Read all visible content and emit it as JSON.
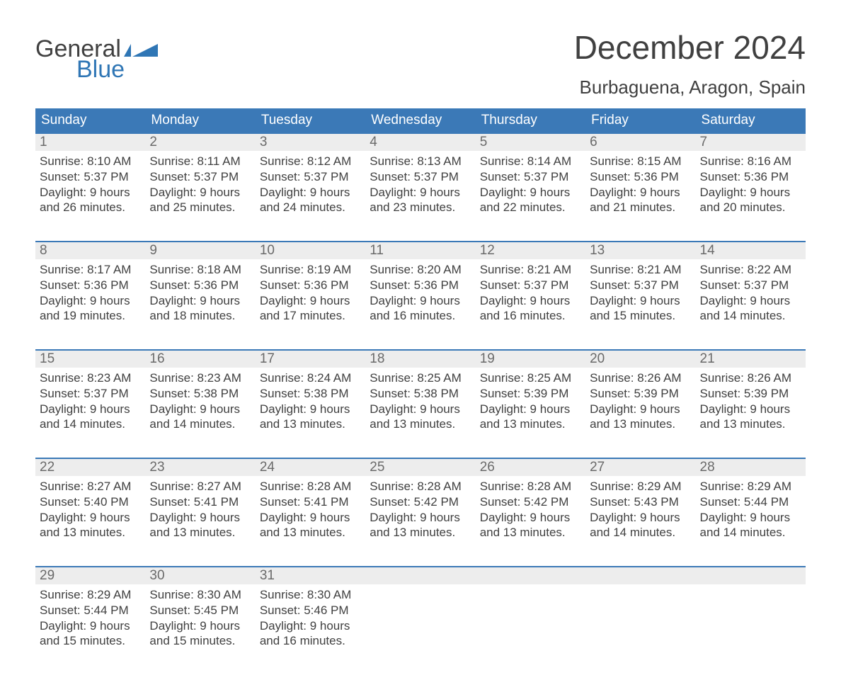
{
  "brand": {
    "word1": "General",
    "word2": "Blue",
    "flag_color": "#2f76b5",
    "text_color_dark": "#404040"
  },
  "title": "December 2024",
  "location": "Burbaguena, Aragon, Spain",
  "colors": {
    "header_bg": "#3b79b7",
    "header_text": "#ffffff",
    "num_bg": "#ededed",
    "num_text": "#6a6a6a",
    "body_text": "#404040",
    "rule": "#3b79b7",
    "page_bg": "#ffffff"
  },
  "typography": {
    "title_fontsize": 46,
    "location_fontsize": 26,
    "dayhead_fontsize": 19,
    "daynum_fontsize": 19,
    "body_fontsize": 17
  },
  "day_headers": [
    "Sunday",
    "Monday",
    "Tuesday",
    "Wednesday",
    "Thursday",
    "Friday",
    "Saturday"
  ],
  "weeks": [
    [
      {
        "num": "1",
        "sunrise": "Sunrise: 8:10 AM",
        "sunset": "Sunset: 5:37 PM",
        "day1": "Daylight: 9 hours",
        "day2": "and 26 minutes."
      },
      {
        "num": "2",
        "sunrise": "Sunrise: 8:11 AM",
        "sunset": "Sunset: 5:37 PM",
        "day1": "Daylight: 9 hours",
        "day2": "and 25 minutes."
      },
      {
        "num": "3",
        "sunrise": "Sunrise: 8:12 AM",
        "sunset": "Sunset: 5:37 PM",
        "day1": "Daylight: 9 hours",
        "day2": "and 24 minutes."
      },
      {
        "num": "4",
        "sunrise": "Sunrise: 8:13 AM",
        "sunset": "Sunset: 5:37 PM",
        "day1": "Daylight: 9 hours",
        "day2": "and 23 minutes."
      },
      {
        "num": "5",
        "sunrise": "Sunrise: 8:14 AM",
        "sunset": "Sunset: 5:37 PM",
        "day1": "Daylight: 9 hours",
        "day2": "and 22 minutes."
      },
      {
        "num": "6",
        "sunrise": "Sunrise: 8:15 AM",
        "sunset": "Sunset: 5:36 PM",
        "day1": "Daylight: 9 hours",
        "day2": "and 21 minutes."
      },
      {
        "num": "7",
        "sunrise": "Sunrise: 8:16 AM",
        "sunset": "Sunset: 5:36 PM",
        "day1": "Daylight: 9 hours",
        "day2": "and 20 minutes."
      }
    ],
    [
      {
        "num": "8",
        "sunrise": "Sunrise: 8:17 AM",
        "sunset": "Sunset: 5:36 PM",
        "day1": "Daylight: 9 hours",
        "day2": "and 19 minutes."
      },
      {
        "num": "9",
        "sunrise": "Sunrise: 8:18 AM",
        "sunset": "Sunset: 5:36 PM",
        "day1": "Daylight: 9 hours",
        "day2": "and 18 minutes."
      },
      {
        "num": "10",
        "sunrise": "Sunrise: 8:19 AM",
        "sunset": "Sunset: 5:36 PM",
        "day1": "Daylight: 9 hours",
        "day2": "and 17 minutes."
      },
      {
        "num": "11",
        "sunrise": "Sunrise: 8:20 AM",
        "sunset": "Sunset: 5:36 PM",
        "day1": "Daylight: 9 hours",
        "day2": "and 16 minutes."
      },
      {
        "num": "12",
        "sunrise": "Sunrise: 8:21 AM",
        "sunset": "Sunset: 5:37 PM",
        "day1": "Daylight: 9 hours",
        "day2": "and 16 minutes."
      },
      {
        "num": "13",
        "sunrise": "Sunrise: 8:21 AM",
        "sunset": "Sunset: 5:37 PM",
        "day1": "Daylight: 9 hours",
        "day2": "and 15 minutes."
      },
      {
        "num": "14",
        "sunrise": "Sunrise: 8:22 AM",
        "sunset": "Sunset: 5:37 PM",
        "day1": "Daylight: 9 hours",
        "day2": "and 14 minutes."
      }
    ],
    [
      {
        "num": "15",
        "sunrise": "Sunrise: 8:23 AM",
        "sunset": "Sunset: 5:37 PM",
        "day1": "Daylight: 9 hours",
        "day2": "and 14 minutes."
      },
      {
        "num": "16",
        "sunrise": "Sunrise: 8:23 AM",
        "sunset": "Sunset: 5:38 PM",
        "day1": "Daylight: 9 hours",
        "day2": "and 14 minutes."
      },
      {
        "num": "17",
        "sunrise": "Sunrise: 8:24 AM",
        "sunset": "Sunset: 5:38 PM",
        "day1": "Daylight: 9 hours",
        "day2": "and 13 minutes."
      },
      {
        "num": "18",
        "sunrise": "Sunrise: 8:25 AM",
        "sunset": "Sunset: 5:38 PM",
        "day1": "Daylight: 9 hours",
        "day2": "and 13 minutes."
      },
      {
        "num": "19",
        "sunrise": "Sunrise: 8:25 AM",
        "sunset": "Sunset: 5:39 PM",
        "day1": "Daylight: 9 hours",
        "day2": "and 13 minutes."
      },
      {
        "num": "20",
        "sunrise": "Sunrise: 8:26 AM",
        "sunset": "Sunset: 5:39 PM",
        "day1": "Daylight: 9 hours",
        "day2": "and 13 minutes."
      },
      {
        "num": "21",
        "sunrise": "Sunrise: 8:26 AM",
        "sunset": "Sunset: 5:39 PM",
        "day1": "Daylight: 9 hours",
        "day2": "and 13 minutes."
      }
    ],
    [
      {
        "num": "22",
        "sunrise": "Sunrise: 8:27 AM",
        "sunset": "Sunset: 5:40 PM",
        "day1": "Daylight: 9 hours",
        "day2": "and 13 minutes."
      },
      {
        "num": "23",
        "sunrise": "Sunrise: 8:27 AM",
        "sunset": "Sunset: 5:41 PM",
        "day1": "Daylight: 9 hours",
        "day2": "and 13 minutes."
      },
      {
        "num": "24",
        "sunrise": "Sunrise: 8:28 AM",
        "sunset": "Sunset: 5:41 PM",
        "day1": "Daylight: 9 hours",
        "day2": "and 13 minutes."
      },
      {
        "num": "25",
        "sunrise": "Sunrise: 8:28 AM",
        "sunset": "Sunset: 5:42 PM",
        "day1": "Daylight: 9 hours",
        "day2": "and 13 minutes."
      },
      {
        "num": "26",
        "sunrise": "Sunrise: 8:28 AM",
        "sunset": "Sunset: 5:42 PM",
        "day1": "Daylight: 9 hours",
        "day2": "and 13 minutes."
      },
      {
        "num": "27",
        "sunrise": "Sunrise: 8:29 AM",
        "sunset": "Sunset: 5:43 PM",
        "day1": "Daylight: 9 hours",
        "day2": "and 14 minutes."
      },
      {
        "num": "28",
        "sunrise": "Sunrise: 8:29 AM",
        "sunset": "Sunset: 5:44 PM",
        "day1": "Daylight: 9 hours",
        "day2": "and 14 minutes."
      }
    ],
    [
      {
        "num": "29",
        "sunrise": "Sunrise: 8:29 AM",
        "sunset": "Sunset: 5:44 PM",
        "day1": "Daylight: 9 hours",
        "day2": "and 15 minutes."
      },
      {
        "num": "30",
        "sunrise": "Sunrise: 8:30 AM",
        "sunset": "Sunset: 5:45 PM",
        "day1": "Daylight: 9 hours",
        "day2": "and 15 minutes."
      },
      {
        "num": "31",
        "sunrise": "Sunrise: 8:30 AM",
        "sunset": "Sunset: 5:46 PM",
        "day1": "Daylight: 9 hours",
        "day2": "and 16 minutes."
      },
      {
        "num": "",
        "sunrise": "",
        "sunset": "",
        "day1": "",
        "day2": ""
      },
      {
        "num": "",
        "sunrise": "",
        "sunset": "",
        "day1": "",
        "day2": ""
      },
      {
        "num": "",
        "sunrise": "",
        "sunset": "",
        "day1": "",
        "day2": ""
      },
      {
        "num": "",
        "sunrise": "",
        "sunset": "",
        "day1": "",
        "day2": ""
      }
    ]
  ]
}
